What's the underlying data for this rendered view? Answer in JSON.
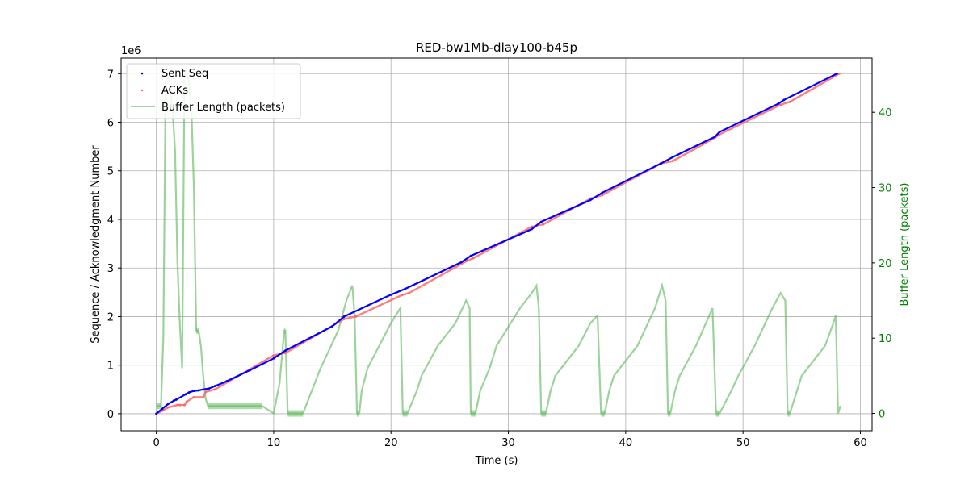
{
  "chart_data": {
    "type": "line",
    "title": "RED-bw1Mb-dlay100-b45p",
    "xlabel": "Time (s)",
    "ylabel": "Sequence / Acknowledgment Number",
    "y2label": "Buffer Length (packets)",
    "offset_text": "1e6",
    "xlim": [
      -3,
      61
    ],
    "ylim": [
      -0.35,
      7.32
    ],
    "y2lim": [
      -2.3,
      47.2
    ],
    "x_ticks": [
      0,
      10,
      20,
      30,
      40,
      50,
      60
    ],
    "y_ticks": [
      0,
      1,
      2,
      3,
      4,
      5,
      6,
      7
    ],
    "y2_ticks": [
      0,
      10,
      20,
      30,
      40
    ],
    "grid": true,
    "legend_position": "upper-left",
    "colors": {
      "sent": "#0000ff",
      "acks": "#ff6666",
      "buffer": "#66bb66",
      "y2_axis": "#008000"
    },
    "series": [
      {
        "name": "Sent Seq",
        "style": "scatter",
        "x": [
          0,
          0.5,
          1,
          1.5,
          1.7,
          2.5,
          2.8,
          3.2,
          3.6,
          4,
          4.5,
          5,
          6,
          8,
          10,
          11,
          15,
          16,
          20,
          21.2,
          26,
          26.8,
          32,
          32.8,
          37,
          38,
          43,
          44,
          47.6,
          48,
          53,
          53.5,
          58
        ],
        "y": [
          0,
          0.1,
          0.2,
          0.27,
          0.29,
          0.4,
          0.44,
          0.47,
          0.48,
          0.5,
          0.52,
          0.57,
          0.67,
          0.9,
          1.14,
          1.3,
          1.8,
          2.0,
          2.45,
          2.57,
          3.12,
          3.25,
          3.8,
          3.95,
          4.4,
          4.55,
          5.15,
          5.28,
          5.7,
          5.8,
          6.38,
          6.46,
          7.0
        ]
      },
      {
        "name": "ACKs",
        "style": "scatter",
        "x": [
          0,
          0.6,
          1,
          1.8,
          2.0,
          2.4,
          2.6,
          3.2,
          4.0,
          4.2,
          5,
          10,
          11,
          16,
          17,
          21,
          21.5,
          26.5,
          27,
          32,
          33,
          37,
          38,
          43,
          44,
          47.6,
          48,
          53.2,
          54,
          58.2
        ],
        "y": [
          0,
          0.07,
          0.13,
          0.18,
          0.18,
          0.18,
          0.25,
          0.34,
          0.34,
          0.45,
          0.5,
          1.2,
          1.25,
          1.95,
          2.0,
          2.45,
          2.48,
          3.15,
          3.2,
          3.85,
          3.9,
          4.43,
          4.5,
          5.15,
          5.2,
          5.68,
          5.75,
          6.36,
          6.42,
          7.0
        ]
      },
      {
        "name": "Buffer Length (packets)",
        "style": "line",
        "x": [
          0,
          0.4,
          0.6,
          0.8,
          1.0,
          1.2,
          1.4,
          1.6,
          1.8,
          2.0,
          2.2,
          2.4,
          2.6,
          2.8,
          3.0,
          3.2,
          3.4,
          3.6,
          3.8,
          4.0,
          4.2,
          4.4,
          4.6,
          4.8,
          5.0,
          7.0,
          7.4,
          9.0,
          10.0,
          10.5,
          10.9,
          11.0,
          11.2,
          12.0,
          12.5,
          14.0,
          15.5,
          16.2,
          16.7,
          16.9,
          17.1,
          17.3,
          17.5,
          18.0,
          19.0,
          20.0,
          20.8,
          21.0,
          21.4,
          22.2,
          22.6,
          24.0,
          25.5,
          26.4,
          26.7,
          26.8,
          27.2,
          27.6,
          28.4,
          29.0,
          31.0,
          32.0,
          32.4,
          32.6,
          32.8,
          33.2,
          33.6,
          34.0,
          36.0,
          37.0,
          37.6,
          37.9,
          38.2,
          38.6,
          39.0,
          41.0,
          42.5,
          43.1,
          43.4,
          43.6,
          43.8,
          44.2,
          44.6,
          46.0,
          47.4,
          47.7,
          48.0,
          49.0,
          49.6,
          51.0,
          52.5,
          53.2,
          53.6,
          53.8,
          54.0,
          54.6,
          55.0,
          57.0,
          57.7,
          57.9,
          58.1,
          58.3
        ],
        "y": [
          1,
          1,
          10,
          44,
          45,
          43,
          40,
          35,
          20,
          12,
          6,
          45,
          45,
          44,
          40,
          30,
          11,
          11,
          9,
          5,
          2,
          1,
          1,
          1,
          1,
          1,
          1,
          1,
          0,
          4,
          11,
          11,
          0,
          0,
          0,
          6,
          11,
          15,
          17,
          13,
          0,
          0,
          3,
          6,
          9,
          12,
          14,
          0,
          0,
          3,
          5,
          9,
          12,
          15,
          14,
          0,
          0,
          3,
          6,
          9,
          14,
          16,
          17,
          14,
          0,
          0,
          3,
          5,
          9,
          12,
          13,
          0,
          0,
          3,
          5,
          9,
          14,
          17,
          15,
          0,
          0,
          3,
          5,
          9,
          14,
          0,
          0,
          3,
          5,
          9,
          14,
          16,
          15,
          0,
          0,
          3,
          5,
          9,
          12,
          13,
          0,
          1
        ]
      }
    ]
  }
}
